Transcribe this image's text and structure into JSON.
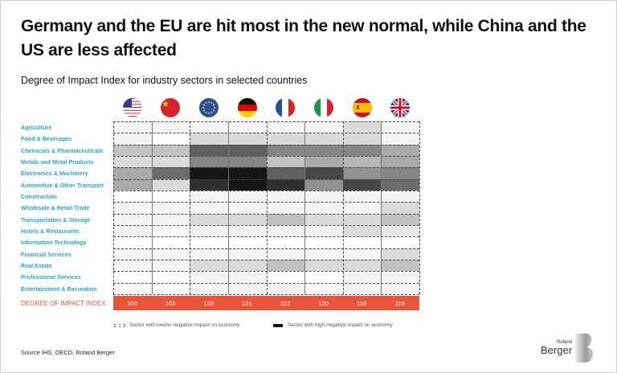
{
  "header": {
    "title": "Germany and the EU are hit most in the new normal, while China and the US are less affected",
    "subtitle": "Degree of Impact Index for industry sectors in selected countries"
  },
  "chart_data": {
    "type": "heatmap",
    "title": "Degree of Impact Index for industry sectors in selected countries",
    "columns": [
      "US",
      "China",
      "EU",
      "Germany",
      "France",
      "Italy",
      "Spain",
      "UK"
    ],
    "column_icons": [
      "us-flag",
      "china-flag",
      "eu-flag",
      "germany-flag",
      "france-flag",
      "italy-flag",
      "spain-flag",
      "uk-flag"
    ],
    "rows": [
      "Agriculture",
      "Food & Beverages",
      "Chemicals & Pharmaceuticals",
      "Metals and Metal Products",
      "Electronics & Machinery",
      "Automotive & Other Transport",
      "Construction",
      "Wholesale & Retail Trade",
      "Transportation & Storage",
      "Hotels & Restaurants",
      "Information Technology",
      "Financial Services",
      "Real Estate",
      "Professional Services",
      "Entertainment & Recreation"
    ],
    "value_scale": "0 = low/no negative impact (white), 1 = high negative impact (black)",
    "values": [
      [
        0.05,
        0.05,
        0.05,
        0.05,
        0.05,
        0.05,
        0.15,
        0.05
      ],
      [
        0.05,
        0.0,
        0.15,
        0.15,
        0.15,
        0.15,
        0.15,
        0.05
      ],
      [
        0.25,
        0.25,
        0.65,
        0.65,
        0.5,
        0.5,
        0.5,
        0.35
      ],
      [
        0.15,
        0.15,
        0.5,
        0.5,
        0.25,
        0.35,
        0.3,
        0.35
      ],
      [
        0.35,
        0.6,
        0.95,
        0.95,
        0.65,
        0.75,
        0.45,
        0.5
      ],
      [
        0.35,
        0.15,
        0.85,
        0.95,
        0.85,
        0.45,
        0.75,
        0.6
      ],
      [
        0.0,
        0.0,
        0.05,
        0.05,
        0.05,
        0.05,
        0.05,
        0.05
      ],
      [
        0.05,
        0.05,
        0.05,
        0.05,
        0.05,
        0.05,
        0.05,
        0.15
      ],
      [
        0.05,
        0.05,
        0.15,
        0.15,
        0.25,
        0.15,
        0.15,
        0.25
      ],
      [
        0.05,
        0.0,
        0.05,
        0.05,
        0.05,
        0.05,
        0.15,
        0.1
      ],
      [
        0.0,
        0.0,
        0.0,
        0.0,
        0.0,
        0.0,
        0.0,
        0.0
      ],
      [
        0.05,
        0.05,
        0.05,
        0.05,
        0.05,
        0.05,
        0.05,
        0.15
      ],
      [
        0.05,
        0.05,
        0.15,
        0.15,
        0.25,
        0.15,
        0.15,
        0.25
      ],
      [
        0.0,
        0.0,
        0.05,
        0.05,
        0.0,
        0.0,
        0.05,
        0.05
      ],
      [
        0.0,
        0.0,
        0.05,
        0.05,
        0.05,
        0.0,
        0.05,
        0.05
      ]
    ],
    "index_label": "DEGREE OF IMPACT INDEX",
    "index_values": [
      100,
      103,
      128,
      131,
      122,
      120,
      118,
      118
    ],
    "legend": [
      {
        "label": "Sector with low/no negative impact on economy",
        "style": "dashed-white"
      },
      {
        "label": "Sector with high negative impact on economy",
        "style": "solid-black"
      }
    ],
    "legend_position": "bottom"
  },
  "footer": {
    "source": "Source IHS, OECD, Roland Berger",
    "logo_top": "Roland",
    "logo_bottom": "Berger"
  },
  "colors": {
    "accent": "#e8553b",
    "row_label": "#2aa7c9"
  }
}
